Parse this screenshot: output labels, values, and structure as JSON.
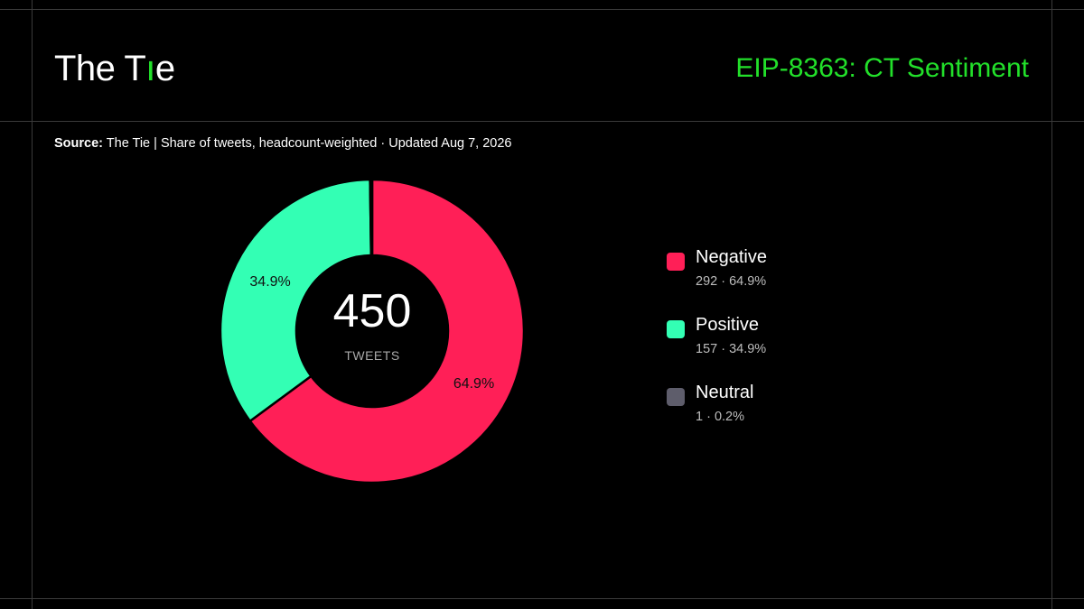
{
  "brand": {
    "logo_prefix": "The T",
    "logo_mark": "ı",
    "logo_suffix": "e"
  },
  "header": {
    "title": "EIP-8363: CT Sentiment"
  },
  "source": {
    "label": "Source:",
    "text": " The Tie | Share of tweets, headcount-weighted · Updated Aug 7, 2026"
  },
  "colors": {
    "background": "#000000",
    "accent": "#22e02a",
    "negative": "#ff1f57",
    "positive": "#33ffb4",
    "neutral": "#5e5d6b"
  },
  "chart_data": {
    "type": "pie",
    "variant": "donut",
    "center_value": "450",
    "center_label": "TWEETS",
    "total": 450,
    "slices": [
      {
        "name": "Negative",
        "value": 292,
        "percent": 64.9,
        "percent_label": "64.9%",
        "detail": "292 · 64.9%",
        "color": "#ff1f57"
      },
      {
        "name": "Positive",
        "value": 157,
        "percent": 34.9,
        "percent_label": "34.9%",
        "detail": "157 · 34.9%",
        "color": "#33ffb4"
      },
      {
        "name": "Neutral",
        "value": 1,
        "percent": 0.2,
        "percent_label": "",
        "detail": "1 · 0.2%",
        "color": "#5e5d6b"
      }
    ],
    "legend_position": "right"
  }
}
